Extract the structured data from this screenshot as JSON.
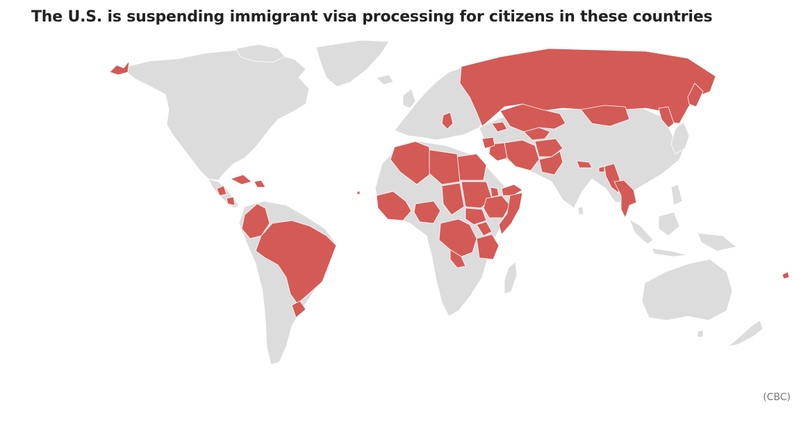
{
  "title": "The U.S. is suspending immigrant visa processing for citizens in these countries",
  "credit": "(CBC)",
  "colors": {
    "highlight": "#d45a56",
    "land": "#dcdcdc",
    "border": "#ffffff",
    "title": "#222222",
    "credit": "#777777"
  },
  "map": {
    "type": "choropleth",
    "projection": "world",
    "legend": "none"
  }
}
